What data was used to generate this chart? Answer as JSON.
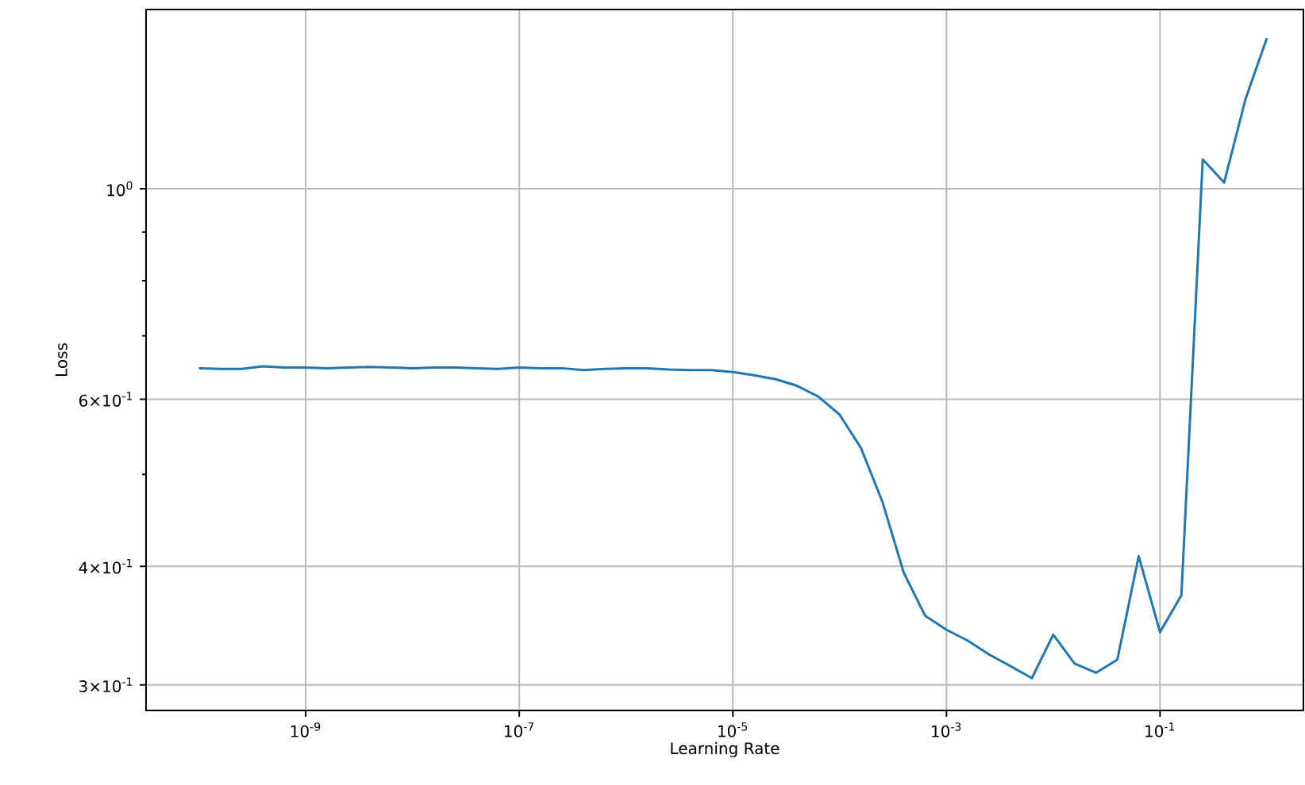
{
  "chart_data": {
    "type": "line",
    "xlabel": "Learning Rate",
    "ylabel": "Loss",
    "log": "xy",
    "grid": true,
    "x": [
      1e-10,
      1.585e-10,
      2.512e-10,
      3.981e-10,
      6.31e-10,
      1e-09,
      1.585e-09,
      2.512e-09,
      3.981e-09,
      6.31e-09,
      1e-08,
      1.585e-08,
      2.512e-08,
      3.981e-08,
      6.31e-08,
      1e-07,
      1.585e-07,
      2.512e-07,
      3.981e-07,
      6.31e-07,
      1e-06,
      1.585e-06,
      2.512e-06,
      3.981e-06,
      6.31e-06,
      1e-05,
      1.585e-05,
      2.512e-05,
      3.981e-05,
      6.31e-05,
      0.0001,
      0.0001585,
      0.0002512,
      0.0003981,
      0.000631,
      0.001,
      0.001585,
      0.002512,
      0.003981,
      0.00631,
      0.01,
      0.01585,
      0.02512,
      0.03981,
      0.0631,
      0.1,
      0.1585,
      0.2512,
      0.3981,
      0.631,
      1
    ],
    "series": [
      {
        "color": "#1f77b4",
        "values": [
          0.647,
          0.646,
          0.646,
          0.65,
          0.648,
          0.648,
          0.647,
          0.648,
          0.649,
          0.648,
          0.647,
          0.648,
          0.648,
          0.647,
          0.646,
          0.648,
          0.647,
          0.647,
          0.644,
          0.646,
          0.647,
          0.647,
          0.645,
          0.644,
          0.644,
          0.641,
          0.636,
          0.63,
          0.62,
          0.604,
          0.578,
          0.533,
          0.468,
          0.394,
          0.355,
          0.343,
          0.334,
          0.323,
          0.314,
          0.305,
          0.339,
          0.316,
          0.309,
          0.319,
          0.41,
          0.341,
          0.373,
          1.074,
          1.015,
          1.243,
          1.441
        ]
      }
    ],
    "xlim": [
      3.2e-11,
      2.2
    ],
    "ylim": [
      0.282,
      1.545
    ],
    "xticks": [
      {
        "value": 1e-09,
        "label": "10$^{-9}$"
      },
      {
        "value": 1e-07,
        "label": "10$^{-7}$"
      },
      {
        "value": 1e-05,
        "label": "10$^{-5}$"
      },
      {
        "value": 0.001,
        "label": "10$^{-3}$"
      },
      {
        "value": 0.1,
        "label": "10$^{-1}$"
      }
    ],
    "yticks": [
      {
        "value": 0.3,
        "label": "3×10$^{-1}$"
      },
      {
        "value": 0.4,
        "label": "4×10$^{-1}$"
      },
      {
        "value": 0.5,
        "label": null
      },
      {
        "value": 0.6,
        "label": "6×10$^{-1}$"
      },
      {
        "value": 0.7,
        "label": null
      },
      {
        "value": 0.8,
        "label": null
      },
      {
        "value": 0.9,
        "label": null
      },
      {
        "value": 1,
        "label": "10$^{0}$"
      }
    ]
  }
}
